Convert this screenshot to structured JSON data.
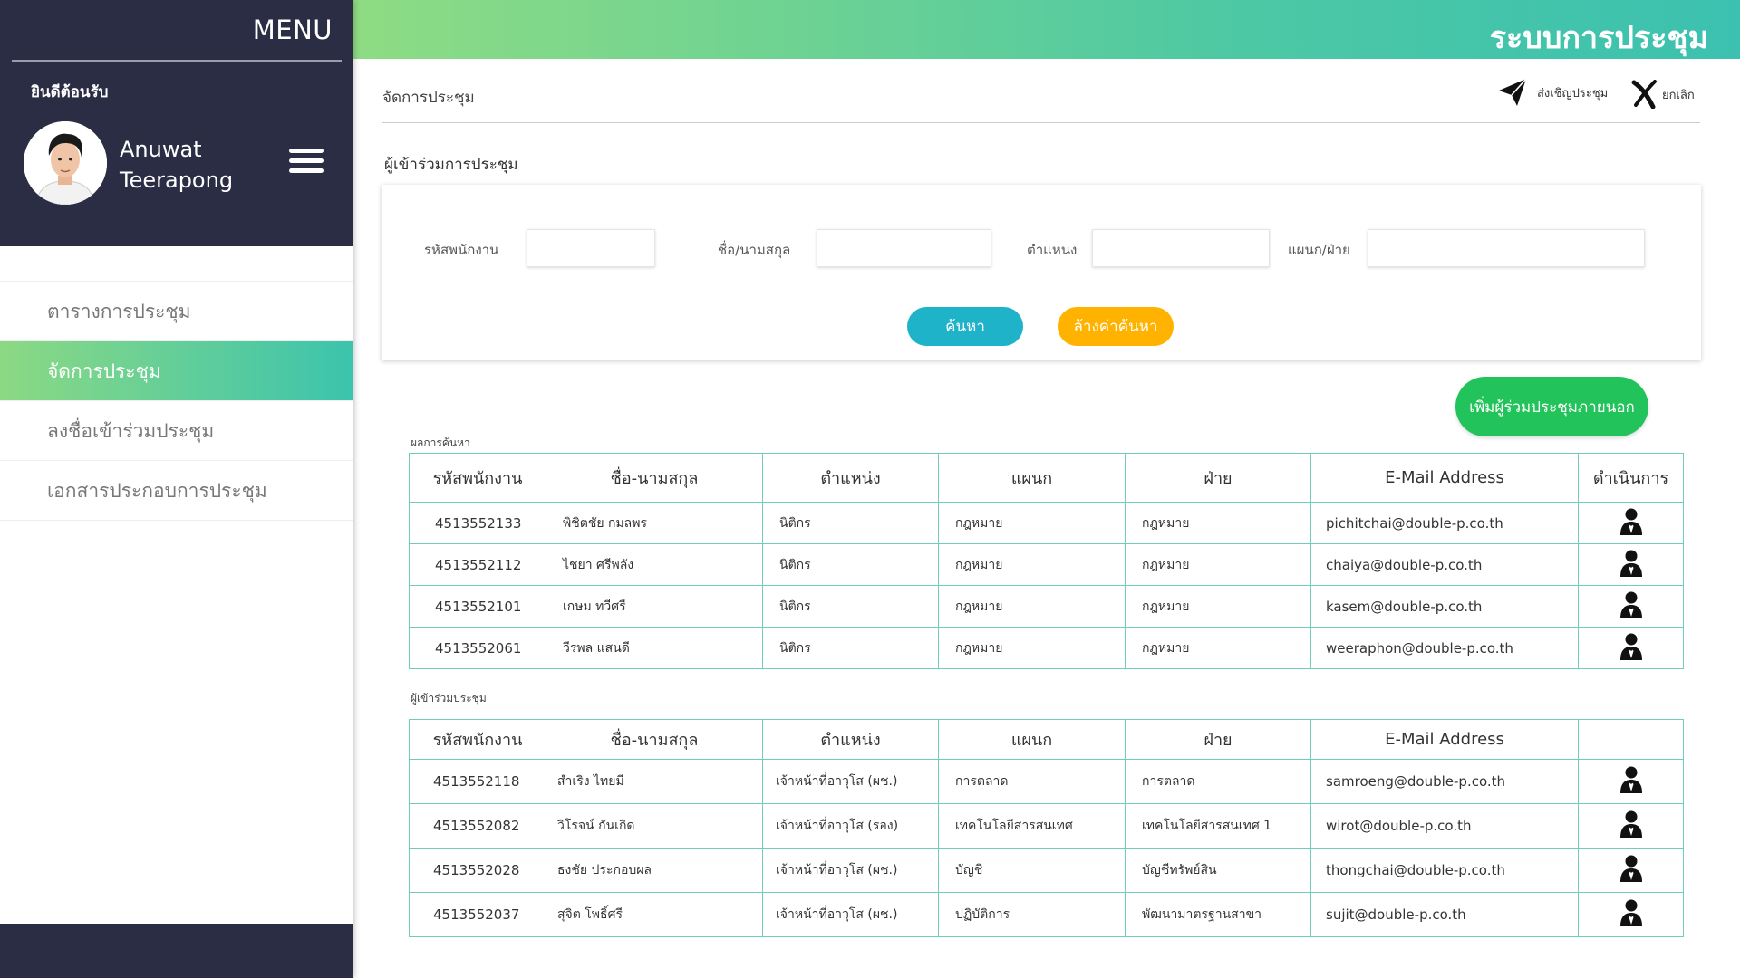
{
  "sidebar": {
    "menu_title": "MENU",
    "welcome": "ยินดีต้อนรับ",
    "user": {
      "first_name": "Anuwat",
      "last_name": "Teerapong"
    },
    "items": [
      {
        "label": "ตารางการประชุม",
        "active": false
      },
      {
        "label": "จัดการประชุม",
        "active": true
      },
      {
        "label": "ลงชื่อเข้าร่วมประชุม",
        "active": false
      },
      {
        "label": "เอกสารประกอบการประชุม",
        "active": false
      }
    ]
  },
  "header": {
    "title": "ระบบการประชุม"
  },
  "toolbar": {
    "breadcrumb": "จัดการประชุม",
    "invite_label": "ส่งเชิญประชุม",
    "cancel_label": "ยกเลิก"
  },
  "section_title": "ผู้เข้าร่วมการประชุม",
  "search": {
    "employee_id_label": "รหัสพนักงาน",
    "name_label": "ชื่อ/นามสกุล",
    "position_label": "ตำแหน่ง",
    "department_label": "แผนก/ฝ่าย",
    "search_button": "ค้นหา",
    "clear_button": "ล้างค่าค้นหา"
  },
  "add_external_button": "เพิ่มผู้ร่วมประชุมภายนอก",
  "results": {
    "caption": "ผลการค้นหา",
    "headers": [
      "รหัสพนักงาน",
      "ชื่อ-นามสกุล",
      "ตำแหน่ง",
      "แผนก",
      "ฝ่าย",
      "E-Mail Address",
      "ดำเนินการ"
    ],
    "rows": [
      [
        "4513552133",
        "พิชิตชัย กมลพร",
        "นิติกร",
        "กฎหมาย",
        "กฎหมาย",
        "pichitchai@double-p.co.th"
      ],
      [
        "4513552112",
        "ไชยา ศรีพลัง",
        "นิติกร",
        "กฎหมาย",
        "กฎหมาย",
        "chaiya@double-p.co.th"
      ],
      [
        "4513552101",
        "เกษม ทวีศรี",
        "นิติกร",
        "กฎหมาย",
        "กฎหมาย",
        "kasem@double-p.co.th"
      ],
      [
        "4513552061",
        "วีรพล แสนดี",
        "นิติกร",
        "กฎหมาย",
        "กฎหมาย",
        "weeraphon@double-p.co.th"
      ]
    ]
  },
  "attendees": {
    "caption": "ผู้เข้าร่วมประชุม",
    "headers": [
      "รหัสพนักงาน",
      "ชื่อ-นามสกุล",
      "ตำแหน่ง",
      "แผนก",
      "ฝ่าย",
      "E-Mail Address",
      ""
    ],
    "rows": [
      [
        "4513552118",
        "สำเริง ไทยมี",
        "เจ้าหน้าที่อาวุโส (ผช.)",
        "การตลาด",
        "การตลาด",
        "samroeng@double-p.co.th"
      ],
      [
        "4513552082",
        "วิโรจน์ กันเกิด",
        "เจ้าหน้าที่อาวุโส (รอง)",
        "เทคโนโลยีสารสนเทศ",
        "เทคโนโลยีสารสนเทศ 1",
        "wirot@double-p.co.th"
      ],
      [
        "4513552028",
        "ธงชัย ประกอบผล",
        "เจ้าหน้าที่อาวุโส (ผช.)",
        "บัญชี",
        "บัญชีทรัพย์สิน",
        "thongchai@double-p.co.th"
      ],
      [
        "4513552037",
        "สุจิต โพธิ์ศรี",
        "เจ้าหน้าที่อาวุโส (ผช.)",
        "ปฏิบัติการ",
        "พัฒนามาตรฐานสาขา",
        "sujit@double-p.co.th"
      ]
    ]
  },
  "icons": {
    "hamburger": "hamburger-icon",
    "invite": "paper-plane-icon",
    "cancel": "x-icon",
    "row_action": "person-icon"
  },
  "colors": {
    "sidebar_dark": "#2b2d45",
    "header_gradient_start": "#8edc83",
    "header_gradient_end": "#3cc1b0",
    "search_button": "#1eb3c9",
    "clear_button": "#ffb300",
    "add_external_button": "#22c35a",
    "table_border": "#6fcdb9"
  }
}
